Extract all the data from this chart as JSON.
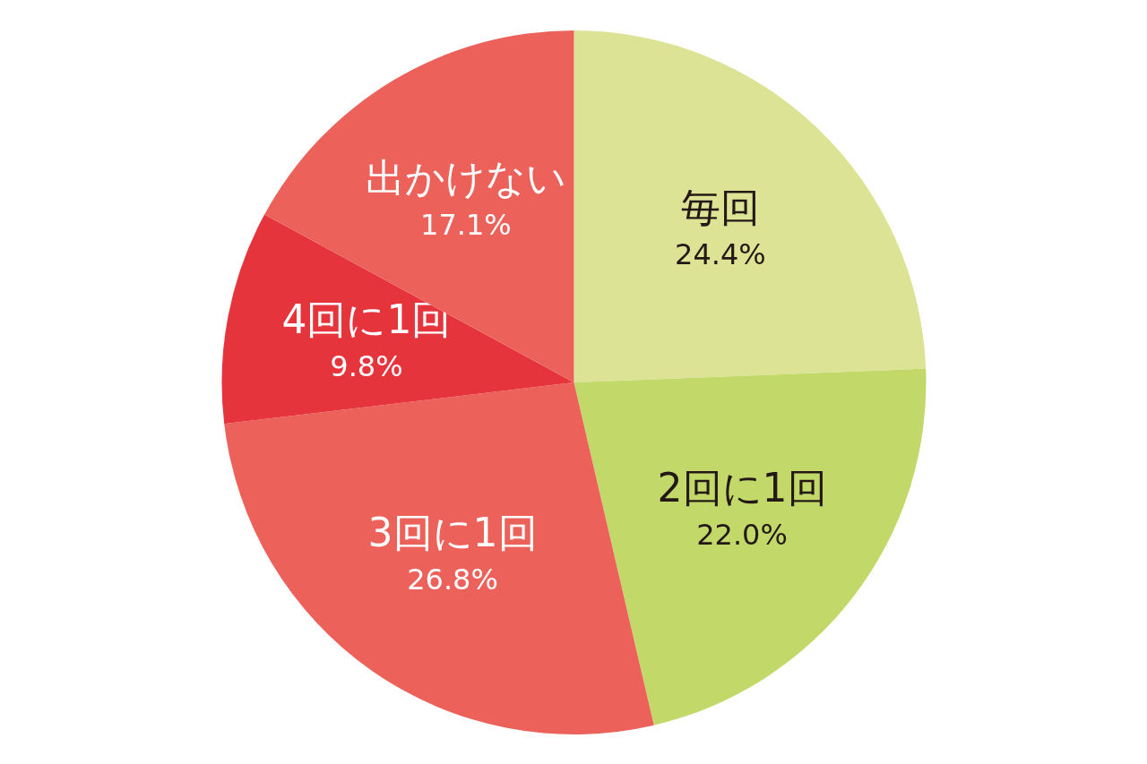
{
  "chart_data": {
    "type": "pie",
    "categories": [
      "毎回",
      "2回に1回",
      "3回に1回",
      "4回に1回",
      "出かけない"
    ],
    "values": [
      24.4,
      22.0,
      26.8,
      9.8,
      17.1
    ],
    "colors": [
      "#dce394",
      "#c2d96a",
      "#ec615a",
      "#e6343d",
      "#ec615a"
    ],
    "value_labels": [
      "24.4%",
      "22.0%",
      "26.8%",
      "9.8%",
      "17.1%"
    ],
    "legend": false
  }
}
